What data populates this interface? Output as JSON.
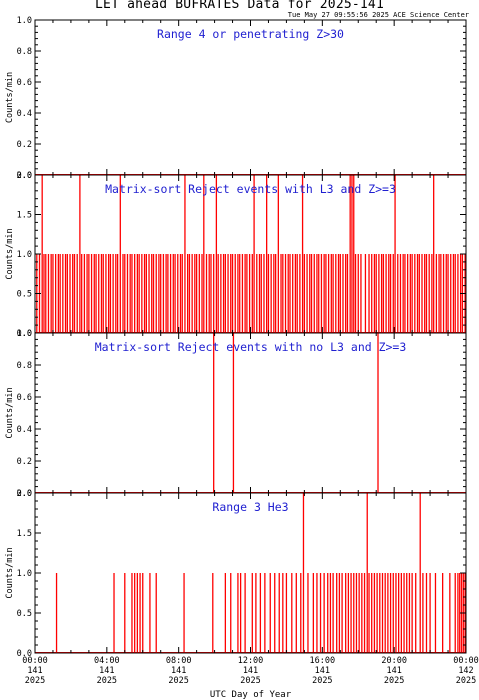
{
  "header": {
    "title": "LET ahead BUFRATES Data for 2025-141",
    "timestamp": "Tue May 27 09:55:56 2025 ACE Science Center"
  },
  "colors": {
    "data": "#ff0000",
    "panel_title": "#1f1fd0",
    "axis": "#000000"
  },
  "chart_data": [
    {
      "type": "line",
      "title": "Range 4 or  penetrating Z>30",
      "ylabel": "Counts/min",
      "ylim": [
        0,
        1.0
      ],
      "yticks": [
        "0.0",
        "0.2",
        "0.4",
        "0.6",
        "0.8",
        "1.0"
      ],
      "xlim": [
        0,
        24
      ],
      "spikes": []
    },
    {
      "type": "line",
      "title": "Matrix-sort Reject events with L3 and Z>=3",
      "ylabel": "Counts/min",
      "ylim": [
        0,
        2.0
      ],
      "yticks": [
        "0.0",
        "0.5",
        "1.0",
        "1.5",
        "2.0"
      ],
      "xlim": [
        0,
        24
      ],
      "spikes": [
        [
          0.1,
          1
        ],
        [
          0.25,
          1
        ],
        [
          0.4,
          2
        ],
        [
          0.5,
          1
        ],
        [
          0.6,
          1
        ],
        [
          0.75,
          1
        ],
        [
          0.9,
          1
        ],
        [
          1.0,
          1
        ],
        [
          1.15,
          1
        ],
        [
          1.3,
          1
        ],
        [
          1.4,
          1
        ],
        [
          1.55,
          1
        ],
        [
          1.7,
          1
        ],
        [
          1.8,
          1
        ],
        [
          1.95,
          1
        ],
        [
          2.1,
          1
        ],
        [
          2.2,
          1
        ],
        [
          2.35,
          1
        ],
        [
          2.5,
          2
        ],
        [
          2.6,
          1
        ],
        [
          2.75,
          1
        ],
        [
          2.9,
          1
        ],
        [
          3.0,
          1
        ],
        [
          3.15,
          1
        ],
        [
          3.3,
          1
        ],
        [
          3.4,
          1
        ],
        [
          3.55,
          1
        ],
        [
          3.7,
          1
        ],
        [
          3.8,
          1
        ],
        [
          3.95,
          1
        ],
        [
          4.1,
          1
        ],
        [
          4.2,
          1
        ],
        [
          4.35,
          1
        ],
        [
          4.5,
          1
        ],
        [
          4.6,
          1
        ],
        [
          4.75,
          2
        ],
        [
          4.9,
          1
        ],
        [
          5.0,
          1
        ],
        [
          5.15,
          1
        ],
        [
          5.3,
          1
        ],
        [
          5.4,
          1
        ],
        [
          5.55,
          1
        ],
        [
          5.7,
          1
        ],
        [
          5.8,
          1
        ],
        [
          5.95,
          1
        ],
        [
          6.1,
          1
        ],
        [
          6.2,
          1
        ],
        [
          6.35,
          1
        ],
        [
          6.5,
          1
        ],
        [
          6.6,
          1
        ],
        [
          6.75,
          1
        ],
        [
          6.9,
          1
        ],
        [
          7.0,
          1
        ],
        [
          7.15,
          1
        ],
        [
          7.3,
          1
        ],
        [
          7.4,
          1
        ],
        [
          7.55,
          1
        ],
        [
          7.7,
          1
        ],
        [
          7.8,
          1
        ],
        [
          7.95,
          1
        ],
        [
          8.1,
          1
        ],
        [
          8.2,
          1
        ],
        [
          8.35,
          2
        ],
        [
          8.5,
          1
        ],
        [
          8.6,
          1
        ],
        [
          8.75,
          1
        ],
        [
          8.9,
          1
        ],
        [
          9.0,
          1
        ],
        [
          9.15,
          1
        ],
        [
          9.3,
          1
        ],
        [
          9.4,
          2
        ],
        [
          9.55,
          1
        ],
        [
          9.7,
          1
        ],
        [
          9.8,
          1
        ],
        [
          9.95,
          1
        ],
        [
          10.1,
          2
        ],
        [
          10.2,
          1
        ],
        [
          10.35,
          1
        ],
        [
          10.5,
          1
        ],
        [
          10.6,
          1
        ],
        [
          10.75,
          1
        ],
        [
          10.9,
          1
        ],
        [
          11.0,
          1
        ],
        [
          11.15,
          1
        ],
        [
          11.3,
          1
        ],
        [
          11.4,
          1
        ],
        [
          11.55,
          1
        ],
        [
          11.7,
          1
        ],
        [
          11.8,
          1
        ],
        [
          11.95,
          1
        ],
        [
          12.1,
          1
        ],
        [
          12.2,
          2
        ],
        [
          12.35,
          1
        ],
        [
          12.5,
          1
        ],
        [
          12.6,
          1
        ],
        [
          12.75,
          1
        ],
        [
          12.9,
          2
        ],
        [
          13.0,
          1
        ],
        [
          13.15,
          1
        ],
        [
          13.3,
          1
        ],
        [
          13.4,
          1
        ],
        [
          13.55,
          2
        ],
        [
          13.7,
          1
        ],
        [
          13.8,
          1
        ],
        [
          13.95,
          1
        ],
        [
          14.1,
          1
        ],
        [
          14.2,
          1
        ],
        [
          14.35,
          1
        ],
        [
          14.5,
          1
        ],
        [
          14.6,
          1
        ],
        [
          14.75,
          1
        ],
        [
          14.9,
          2
        ],
        [
          15.0,
          1
        ],
        [
          15.15,
          1
        ],
        [
          15.3,
          1
        ],
        [
          15.4,
          1
        ],
        [
          15.55,
          1
        ],
        [
          15.7,
          1
        ],
        [
          15.8,
          1
        ],
        [
          15.95,
          1
        ],
        [
          16.1,
          1
        ],
        [
          16.2,
          1
        ],
        [
          16.35,
          1
        ],
        [
          16.5,
          1
        ],
        [
          16.6,
          1
        ],
        [
          16.75,
          1
        ],
        [
          16.9,
          1
        ],
        [
          17.0,
          1
        ],
        [
          17.15,
          1
        ],
        [
          17.3,
          1
        ],
        [
          17.4,
          1
        ],
        [
          17.55,
          2
        ],
        [
          17.65,
          2
        ],
        [
          17.75,
          2
        ],
        [
          17.85,
          1
        ],
        [
          18.0,
          1
        ],
        [
          18.15,
          1
        ],
        [
          18.4,
          1
        ],
        [
          18.6,
          1
        ],
        [
          18.75,
          1
        ],
        [
          18.9,
          1
        ],
        [
          19.0,
          1
        ],
        [
          19.15,
          1
        ],
        [
          19.3,
          1
        ],
        [
          19.4,
          1
        ],
        [
          19.55,
          1
        ],
        [
          19.7,
          1
        ],
        [
          19.8,
          1
        ],
        [
          19.95,
          1
        ],
        [
          20.05,
          2
        ],
        [
          20.2,
          1
        ],
        [
          20.35,
          1
        ],
        [
          20.5,
          1
        ],
        [
          20.6,
          1
        ],
        [
          20.75,
          1
        ],
        [
          20.9,
          1
        ],
        [
          21.0,
          1
        ],
        [
          21.15,
          1
        ],
        [
          21.3,
          1
        ],
        [
          21.4,
          1
        ],
        [
          21.55,
          1
        ],
        [
          21.7,
          1
        ],
        [
          21.8,
          1
        ],
        [
          21.95,
          1
        ],
        [
          22.1,
          1
        ],
        [
          22.2,
          2
        ],
        [
          22.35,
          1
        ],
        [
          22.5,
          1
        ],
        [
          22.6,
          1
        ],
        [
          22.75,
          1
        ],
        [
          22.9,
          1
        ],
        [
          23.0,
          1
        ],
        [
          23.15,
          1
        ],
        [
          23.3,
          1
        ],
        [
          23.4,
          1
        ],
        [
          23.55,
          1
        ],
        [
          23.7,
          1
        ],
        [
          23.8,
          1
        ],
        [
          23.95,
          1
        ]
      ]
    },
    {
      "type": "line",
      "title": "Matrix-sort Reject events with no L3 and Z>=3",
      "ylabel": "Counts/min",
      "ylim": [
        0,
        1.0
      ],
      "yticks": [
        "0.0",
        "0.2",
        "0.4",
        "0.6",
        "0.8",
        "1.0"
      ],
      "xlim": [
        0,
        24
      ],
      "spikes": [
        [
          9.95,
          1
        ],
        [
          11.05,
          1
        ],
        [
          19.1,
          1
        ]
      ]
    },
    {
      "type": "line",
      "title": "Range 3 He3",
      "ylabel": "Counts/min",
      "ylim": [
        0,
        2.0
      ],
      "yticks": [
        "0.0",
        "0.5",
        "1.0",
        "1.5",
        "2.0"
      ],
      "xlim": [
        0,
        24
      ],
      "spikes": [
        [
          1.2,
          1
        ],
        [
          4.4,
          1
        ],
        [
          5.0,
          1
        ],
        [
          5.4,
          1
        ],
        [
          5.55,
          1
        ],
        [
          5.7,
          1
        ],
        [
          5.85,
          1
        ],
        [
          6.0,
          1
        ],
        [
          6.4,
          1
        ],
        [
          6.75,
          1
        ],
        [
          8.3,
          1
        ],
        [
          9.9,
          1
        ],
        [
          10.6,
          1
        ],
        [
          10.9,
          1
        ],
        [
          11.3,
          1
        ],
        [
          11.45,
          1
        ],
        [
          11.7,
          1
        ],
        [
          12.1,
          1
        ],
        [
          12.3,
          1
        ],
        [
          12.55,
          1
        ],
        [
          12.8,
          1
        ],
        [
          13.1,
          1
        ],
        [
          13.35,
          1
        ],
        [
          13.6,
          1
        ],
        [
          13.8,
          1
        ],
        [
          14.0,
          1
        ],
        [
          14.3,
          1
        ],
        [
          14.55,
          1
        ],
        [
          14.8,
          1
        ],
        [
          14.95,
          2
        ],
        [
          15.2,
          1
        ],
        [
          15.5,
          1
        ],
        [
          15.7,
          1
        ],
        [
          15.9,
          1
        ],
        [
          16.1,
          1
        ],
        [
          16.3,
          1
        ],
        [
          16.45,
          1
        ],
        [
          16.6,
          1
        ],
        [
          16.8,
          1
        ],
        [
          16.95,
          1
        ],
        [
          17.1,
          1
        ],
        [
          17.3,
          1
        ],
        [
          17.45,
          1
        ],
        [
          17.6,
          1
        ],
        [
          17.75,
          1
        ],
        [
          17.9,
          1
        ],
        [
          18.05,
          1
        ],
        [
          18.2,
          1
        ],
        [
          18.35,
          1
        ],
        [
          18.5,
          2
        ],
        [
          18.6,
          1
        ],
        [
          18.75,
          1
        ],
        [
          18.9,
          1
        ],
        [
          19.05,
          1
        ],
        [
          19.2,
          1
        ],
        [
          19.35,
          1
        ],
        [
          19.5,
          1
        ],
        [
          19.65,
          1
        ],
        [
          19.8,
          1
        ],
        [
          19.95,
          1
        ],
        [
          20.1,
          1
        ],
        [
          20.25,
          1
        ],
        [
          20.4,
          1
        ],
        [
          20.55,
          1
        ],
        [
          20.7,
          1
        ],
        [
          20.85,
          1
        ],
        [
          21.0,
          1
        ],
        [
          21.2,
          1
        ],
        [
          21.45,
          2
        ],
        [
          21.6,
          1
        ],
        [
          21.8,
          1
        ],
        [
          22.0,
          1
        ],
        [
          22.3,
          1
        ],
        [
          22.7,
          1
        ],
        [
          23.1,
          1
        ],
        [
          23.4,
          1
        ],
        [
          23.55,
          1
        ],
        [
          23.65,
          1
        ],
        [
          23.75,
          1
        ],
        [
          23.85,
          1
        ],
        [
          23.95,
          1
        ]
      ]
    }
  ],
  "x_axis": {
    "ticks": [
      {
        "hour": 0,
        "time": "00:00",
        "doy": "141",
        "year": "2025"
      },
      {
        "hour": 4,
        "time": "04:00",
        "doy": "141",
        "year": "2025"
      },
      {
        "hour": 8,
        "time": "08:00",
        "doy": "141",
        "year": "2025"
      },
      {
        "hour": 12,
        "time": "12:00",
        "doy": "141",
        "year": "2025"
      },
      {
        "hour": 16,
        "time": "16:00",
        "doy": "141",
        "year": "2025"
      },
      {
        "hour": 20,
        "time": "20:00",
        "doy": "141",
        "year": "2025"
      },
      {
        "hour": 24,
        "time": "00:00",
        "doy": "142",
        "year": "2025"
      }
    ],
    "label": "UTC Day of Year"
  }
}
